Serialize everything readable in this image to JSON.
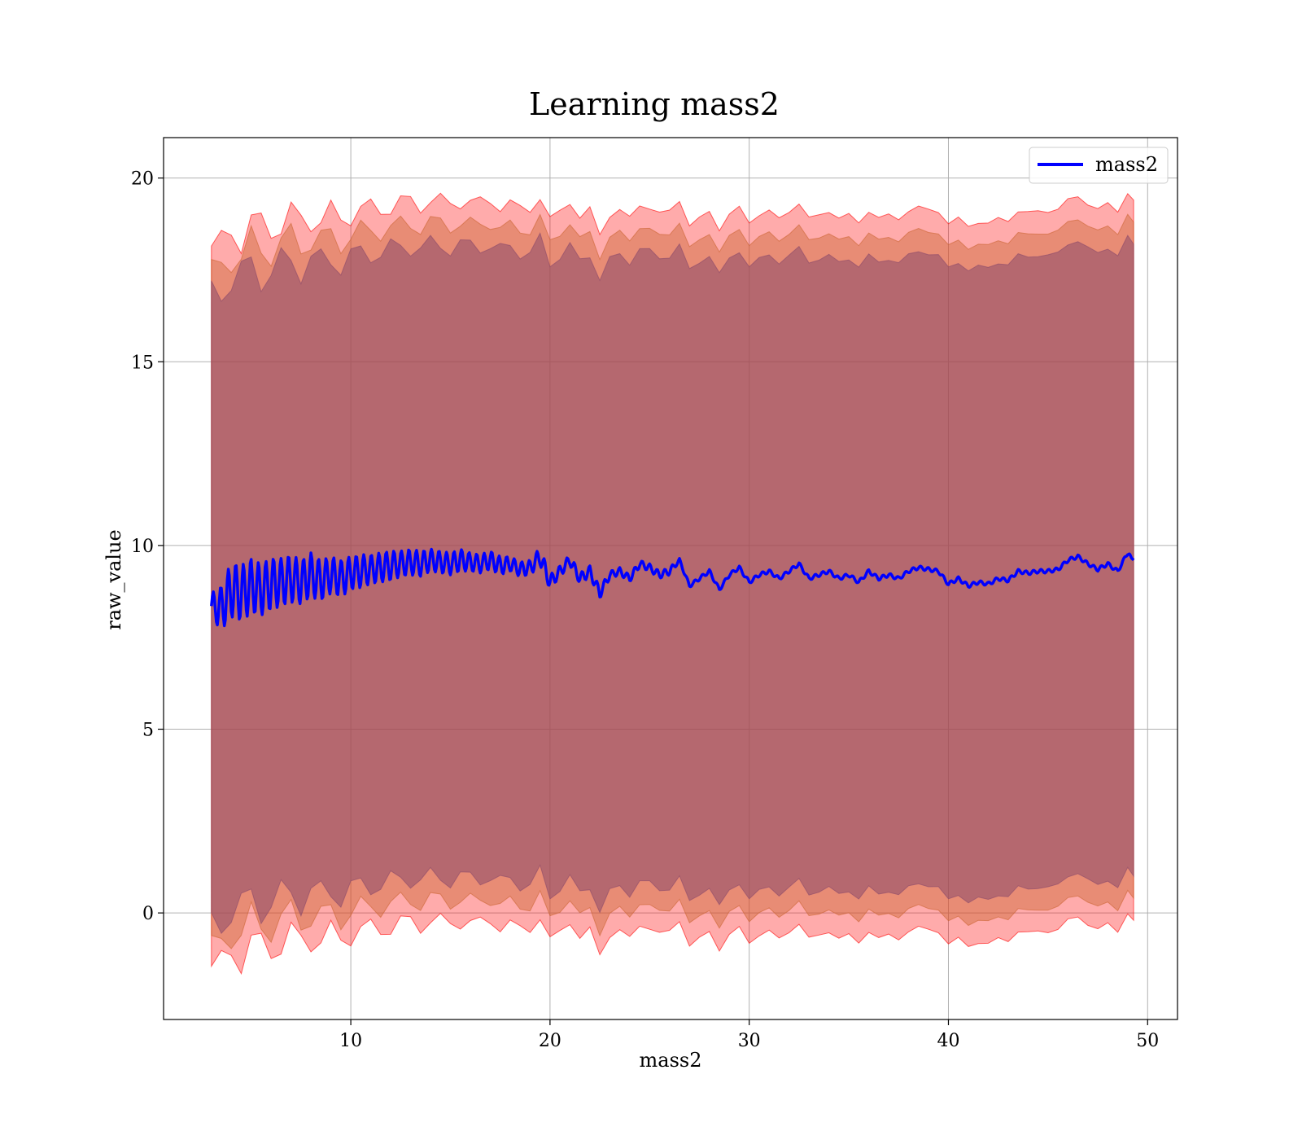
{
  "chart_data": {
    "type": "line",
    "title": "Learning mass2",
    "xlabel": "mass2",
    "ylabel": "raw_value",
    "xlim": [
      0.6,
      51.5
    ],
    "ylim": [
      -2.9,
      21.1
    ],
    "xticks": [
      10,
      20,
      30,
      40,
      50
    ],
    "yticks": [
      0,
      5,
      10,
      15,
      20
    ],
    "grid": true,
    "legend_position": "upper-right",
    "series": [
      {
        "name": "mass2",
        "color": "#0000ff",
        "x": [
          3.0,
          3.5,
          4.0,
          4.5,
          5.0,
          5.5,
          6.0,
          6.5,
          7.0,
          7.5,
          8.0,
          8.5,
          9.0,
          9.5,
          10.0,
          10.5,
          11.0,
          11.5,
          12.0,
          12.5,
          13.0,
          13.5,
          14.0,
          14.5,
          15.0,
          15.5,
          16.0,
          16.5,
          17.0,
          17.5,
          18.0,
          18.5,
          19.0,
          19.5,
          20.0,
          20.5,
          21.0,
          21.5,
          22.0,
          22.5,
          23.0,
          23.5,
          24.0,
          24.5,
          25.0,
          25.5,
          26.0,
          26.5,
          27.0,
          27.5,
          28.0,
          28.5,
          29.0,
          29.5,
          30.0,
          30.5,
          31.0,
          31.5,
          32.0,
          32.5,
          33.0,
          33.5,
          34.0,
          34.5,
          35.0,
          35.5,
          36.0,
          36.5,
          37.0,
          37.5,
          38.0,
          38.5,
          39.0,
          39.5,
          40.0,
          40.5,
          41.0,
          41.5,
          42.0,
          42.5,
          43.0,
          43.5,
          44.0,
          44.5,
          45.0,
          45.5,
          46.0,
          46.5,
          47.0,
          47.5,
          48.0,
          48.5,
          49.0,
          49.3
        ],
        "y": [
          8.35,
          8.3,
          8.8,
          8.7,
          8.9,
          8.8,
          8.95,
          9.0,
          9.1,
          9.0,
          9.2,
          9.05,
          9.2,
          9.1,
          9.25,
          9.3,
          9.35,
          9.4,
          9.45,
          9.5,
          9.55,
          9.5,
          9.6,
          9.55,
          9.5,
          9.6,
          9.55,
          9.5,
          9.6,
          9.45,
          9.5,
          9.35,
          9.4,
          9.7,
          9.0,
          9.3,
          9.6,
          9.1,
          9.3,
          8.7,
          9.2,
          9.3,
          9.1,
          9.5,
          9.4,
          9.2,
          9.3,
          9.6,
          8.9,
          9.1,
          9.3,
          8.8,
          9.2,
          9.4,
          9.0,
          9.2,
          9.3,
          9.1,
          9.3,
          9.5,
          9.1,
          9.2,
          9.3,
          9.1,
          9.2,
          9.0,
          9.3,
          9.1,
          9.2,
          9.1,
          9.3,
          9.4,
          9.35,
          9.3,
          8.95,
          9.1,
          8.9,
          9.0,
          8.95,
          9.1,
          9.05,
          9.3,
          9.25,
          9.3,
          9.3,
          9.35,
          9.6,
          9.7,
          9.5,
          9.35,
          9.5,
          9.3,
          9.8,
          9.6
        ],
        "noise": [
          0.35,
          0.6,
          0.75,
          0.75,
          0.75,
          0.7,
          0.7,
          0.65,
          0.65,
          0.6,
          0.6,
          0.55,
          0.5,
          0.5,
          0.45,
          0.45,
          0.4,
          0.4,
          0.4,
          0.35,
          0.35,
          0.35,
          0.3,
          0.3,
          0.3,
          0.3,
          0.25,
          0.25,
          0.25,
          0.25,
          0.2,
          0.2,
          0.2,
          0.25,
          0.2,
          0.15,
          0.15,
          0.15,
          0.15,
          0.15,
          0.1,
          0.1,
          0.1,
          0.1,
          0.1,
          0.1,
          0.1,
          0.05,
          0.05,
          0.05,
          0.05,
          0.05,
          0.05,
          0.05,
          0.05,
          0.05,
          0.05,
          0.05,
          0.05,
          0.05,
          0.05,
          0.05,
          0.05,
          0.05,
          0.05,
          0.05,
          0.05,
          0.05,
          0.05,
          0.05,
          0.05,
          0.05,
          0.05,
          0.05,
          0.05,
          0.05,
          0.05,
          0.05,
          0.05,
          0.05,
          0.05,
          0.05,
          0.05,
          0.05,
          0.05,
          0.05,
          0.05,
          0.05,
          0.05,
          0.05,
          0.05,
          0.05,
          0.05,
          0.0
        ]
      }
    ],
    "bands": [
      {
        "color": "#ff0000",
        "opacity": 0.33,
        "upper_offset": 9.8,
        "lower_offset": -9.8
      },
      {
        "color": "#cc6633",
        "opacity": 0.45,
        "upper_offset": 9.2,
        "lower_offset": -9.2
      },
      {
        "color": "#8a4a6a",
        "opacity": 0.55,
        "upper_offset": 8.6,
        "lower_offset": -8.6
      }
    ]
  }
}
